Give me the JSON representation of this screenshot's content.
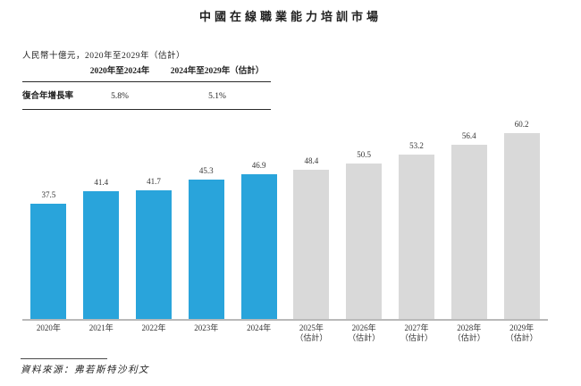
{
  "title": "中國在線職業能力培訓市場",
  "subtitle": "人民幣十億元，2020年至2029年（估計）",
  "cagr_table": {
    "col_headers": [
      "2020年至2024年",
      "2024年至2029年（估計）"
    ],
    "row_label": "復合年增長率",
    "values": [
      "5.8%",
      "5.1%"
    ]
  },
  "chart_data": {
    "type": "bar",
    "title": "中國在線職業能力培訓市場",
    "unit_label": "人民幣十億元",
    "categories": [
      {
        "year": "2020年",
        "note": ""
      },
      {
        "year": "2021年",
        "note": ""
      },
      {
        "year": "2022年",
        "note": ""
      },
      {
        "year": "2023年",
        "note": ""
      },
      {
        "year": "2024年",
        "note": ""
      },
      {
        "year": "2025年",
        "note": "（估計）"
      },
      {
        "year": "2026年",
        "note": "（估計）"
      },
      {
        "year": "2027年",
        "note": "（估計）"
      },
      {
        "year": "2028年",
        "note": "（估計）"
      },
      {
        "year": "2029年",
        "note": "（估計）"
      }
    ],
    "values": [
      37.5,
      41.4,
      41.7,
      45.3,
      46.9,
      48.4,
      50.5,
      53.2,
      56.4,
      60.2
    ],
    "historical_count": 5,
    "ylim": [
      0,
      62
    ],
    "grid": false,
    "legend": "none",
    "colors": {
      "historical_bar": "#29A4DB",
      "estimated_bar": "#D9D9D9",
      "axis_line": "#b9b9b9"
    }
  },
  "source": "資料來源：弗若斯特沙利文"
}
